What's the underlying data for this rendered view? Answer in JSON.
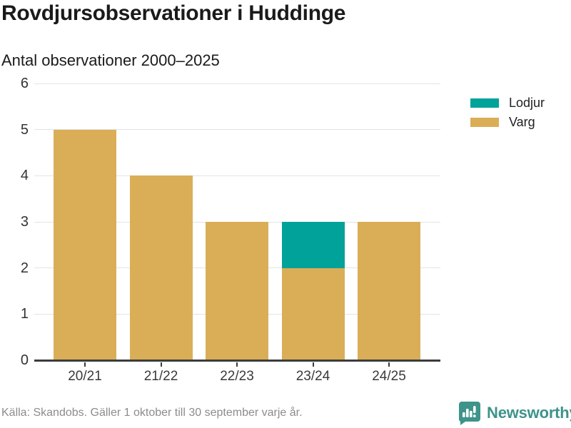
{
  "title": "Rovdjursobservationer i Huddinge",
  "subtitle": "Antal observationer 2000–2025",
  "source": "Källa: Skandobs. Gäller 1 oktober till 30 september varje år.",
  "brand": {
    "name": "Newsworthy",
    "color": "#3e938a",
    "icon": "bar-chart-speech-bubble-icon"
  },
  "colors": {
    "lodjur": "#00a299",
    "varg": "#daae57",
    "gridline": "#e3e3e3",
    "axis": "#3c3c3c",
    "text": "#1a1a1a",
    "muted_text": "#8c8c8c"
  },
  "chart_data": {
    "type": "bar",
    "stacked": true,
    "title": "Rovdjursobservationer i Huddinge",
    "subtitle": "Antal observationer 2000–2025",
    "categories": [
      "20/21",
      "21/22",
      "22/23",
      "23/24",
      "24/25"
    ],
    "series": [
      {
        "name": "Lodjur",
        "color": "#00a299",
        "values": [
          0,
          0,
          0,
          1,
          0
        ]
      },
      {
        "name": "Varg",
        "color": "#daae57",
        "values": [
          5,
          4,
          3,
          2,
          3
        ]
      }
    ],
    "totals": [
      5,
      4,
      3,
      3,
      3
    ],
    "ylim": [
      0,
      6
    ],
    "yticks": [
      0,
      1,
      2,
      3,
      4,
      5,
      6
    ],
    "grid": true,
    "legend_position": "right"
  }
}
